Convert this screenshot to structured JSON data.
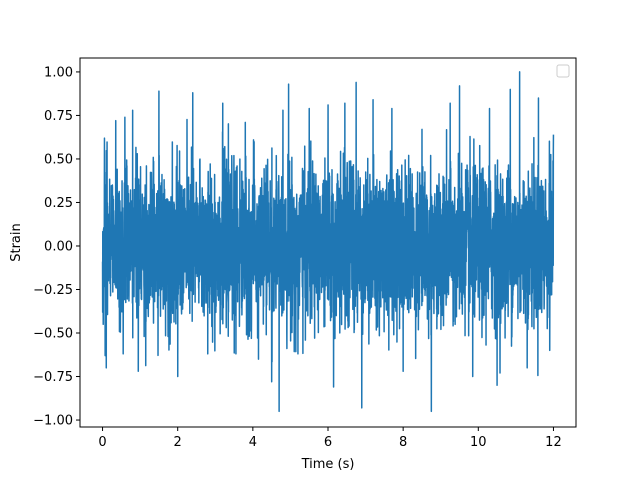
{
  "chart_data": {
    "type": "line",
    "title": "",
    "xlabel": "Time (s)",
    "ylabel": "Strain",
    "xlim": [
      -0.6,
      12.6
    ],
    "ylim": [
      -1.04,
      1.08
    ],
    "xticks": [
      0,
      2,
      4,
      6,
      8,
      10,
      12
    ],
    "xtick_labels": [
      "0",
      "2",
      "4",
      "6",
      "8",
      "10",
      "12"
    ],
    "yticks": [
      -1.0,
      -0.75,
      -0.5,
      -0.25,
      0.0,
      0.25,
      0.5,
      0.75,
      1.0
    ],
    "ytick_labels": [
      "−1.00",
      "−0.75",
      "−0.50",
      "−0.25",
      "0.00",
      "0.25",
      "0.50",
      "0.75",
      "1.00"
    ],
    "grid": false,
    "legend": {
      "placement": "top-right",
      "entries": []
    },
    "series": [
      {
        "color": "#1f77b4",
        "sampling": {
          "x_start": 0,
          "x_end": 12,
          "description_of_signal": "dense noise"
        },
        "envelope_peaks": [
          {
            "x": 0.05,
            "y": 0.62
          },
          {
            "x": 0.07,
            "y": -0.63
          },
          {
            "x": 0.1,
            "y": -0.7
          },
          {
            "x": 0.35,
            "y": 0.72
          },
          {
            "x": 0.55,
            "y": -0.62
          },
          {
            "x": 0.8,
            "y": 0.78
          },
          {
            "x": 0.95,
            "y": -0.72
          },
          {
            "x": 1.5,
            "y": 0.8
          },
          {
            "x": 1.5,
            "y": -0.78
          },
          {
            "x": 1.5,
            "y": 0.89
          },
          {
            "x": 2.0,
            "y": -0.75
          },
          {
            "x": 2.4,
            "y": 0.88
          },
          {
            "x": 2.8,
            "y": -0.62
          },
          {
            "x": 3.2,
            "y": 0.82
          },
          {
            "x": 3.55,
            "y": -0.62
          },
          {
            "x": 3.8,
            "y": 0.71
          },
          {
            "x": 4.15,
            "y": -0.65
          },
          {
            "x": 4.5,
            "y": -0.78
          },
          {
            "x": 4.7,
            "y": -0.95
          },
          {
            "x": 4.95,
            "y": 0.93
          },
          {
            "x": 5.2,
            "y": -0.62
          },
          {
            "x": 5.5,
            "y": 0.79
          },
          {
            "x": 6.0,
            "y": 0.81
          },
          {
            "x": 6.15,
            "y": -0.81
          },
          {
            "x": 6.45,
            "y": 0.82
          },
          {
            "x": 6.75,
            "y": 0.94
          },
          {
            "x": 6.9,
            "y": -0.93
          },
          {
            "x": 7.2,
            "y": 0.84
          },
          {
            "x": 7.7,
            "y": 0.79
          },
          {
            "x": 8.0,
            "y": -0.72
          },
          {
            "x": 8.5,
            "y": 0.67
          },
          {
            "x": 8.75,
            "y": -0.95
          },
          {
            "x": 9.25,
            "y": 0.82
          },
          {
            "x": 9.5,
            "y": 0.92
          },
          {
            "x": 9.85,
            "y": -0.75
          },
          {
            "x": 10.3,
            "y": 0.79
          },
          {
            "x": 10.5,
            "y": -0.8
          },
          {
            "x": 10.85,
            "y": 0.9
          },
          {
            "x": 11.1,
            "y": 1.0
          },
          {
            "x": 11.3,
            "y": -0.7
          },
          {
            "x": 11.6,
            "y": 0.85
          },
          {
            "x": 11.9,
            "y": -0.6
          },
          {
            "x": 12.0,
            "y": 0.64
          }
        ]
      }
    ]
  }
}
